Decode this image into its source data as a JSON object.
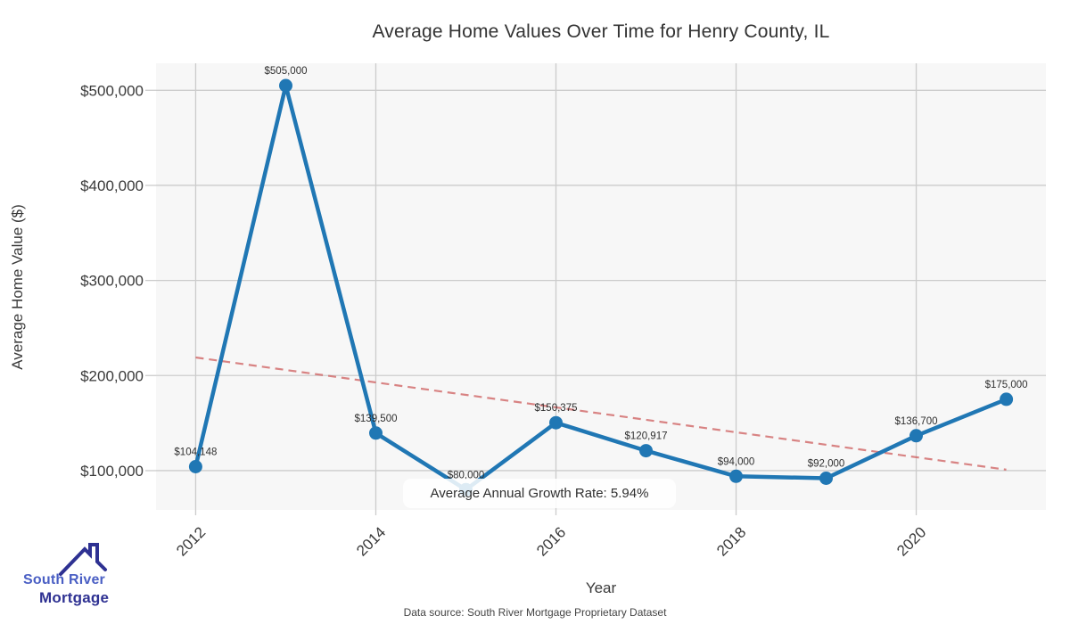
{
  "header": {
    "title": "Average Home Values Over Time for Henry County, IL"
  },
  "axes": {
    "x_label": "Year",
    "y_label": "Average Home Value ($)"
  },
  "annotation": {
    "text": "Average Annual Growth Rate: 5.94%"
  },
  "footer": {
    "text": "Data source: South River Mortgage Proprietary Dataset"
  },
  "logo": {
    "icon": "house-roof-icon",
    "name_line1": "South River",
    "name_line2": "Mortgage"
  },
  "colors": {
    "line": "#2077b4",
    "marker": "#2077b4",
    "trend": "#cd5c5c",
    "grid": "#cccccc",
    "plot_bg": "#f7f7f7",
    "figure_bg": "#ffffff",
    "tick_text": "#3a3a3a",
    "point_label_text": "#2f2f2f",
    "logo_primary": "#4a5fc4",
    "logo_dark": "#2e3192"
  },
  "chart_data": {
    "type": "line",
    "title": "Average Home Values Over Time for Henry County, IL",
    "xlabel": "Year",
    "ylabel": "Average Home Value ($)",
    "x": [
      2012,
      2013,
      2014,
      2015,
      2016,
      2017,
      2018,
      2019,
      2020,
      2021
    ],
    "values": [
      104148,
      505000,
      139500,
      80000,
      150375,
      120917,
      94000,
      92000,
      136700,
      175000
    ],
    "point_labels": [
      "$104,148",
      "$505,000",
      "$139,500",
      "$80,000",
      "$150,375",
      "$120,917",
      "$94,000",
      "$92,000",
      "$136,700",
      "$175,000"
    ],
    "x_ticks": [
      2012,
      2014,
      2016,
      2018,
      2020
    ],
    "x_tick_labels": [
      "2012",
      "2014",
      "2016",
      "2018",
      "2020"
    ],
    "y_ticks": [
      100000,
      200000,
      300000,
      400000,
      500000
    ],
    "y_tick_labels": [
      "$100,000",
      "$200,000",
      "$300,000",
      "$400,000",
      "$500,000"
    ],
    "xlim": [
      2011.56,
      2021.44
    ],
    "ylim": [
      58700,
      528400
    ],
    "grid": true,
    "legend_position": "none",
    "trend_line": {
      "style": "dashed",
      "start": {
        "x": 2012,
        "value": 219000
      },
      "end": {
        "x": 2021,
        "value": 101000
      }
    },
    "annotation": "Average Annual Growth Rate: 5.94%",
    "source": "Data source: South River Mortgage Proprietary Dataset"
  }
}
